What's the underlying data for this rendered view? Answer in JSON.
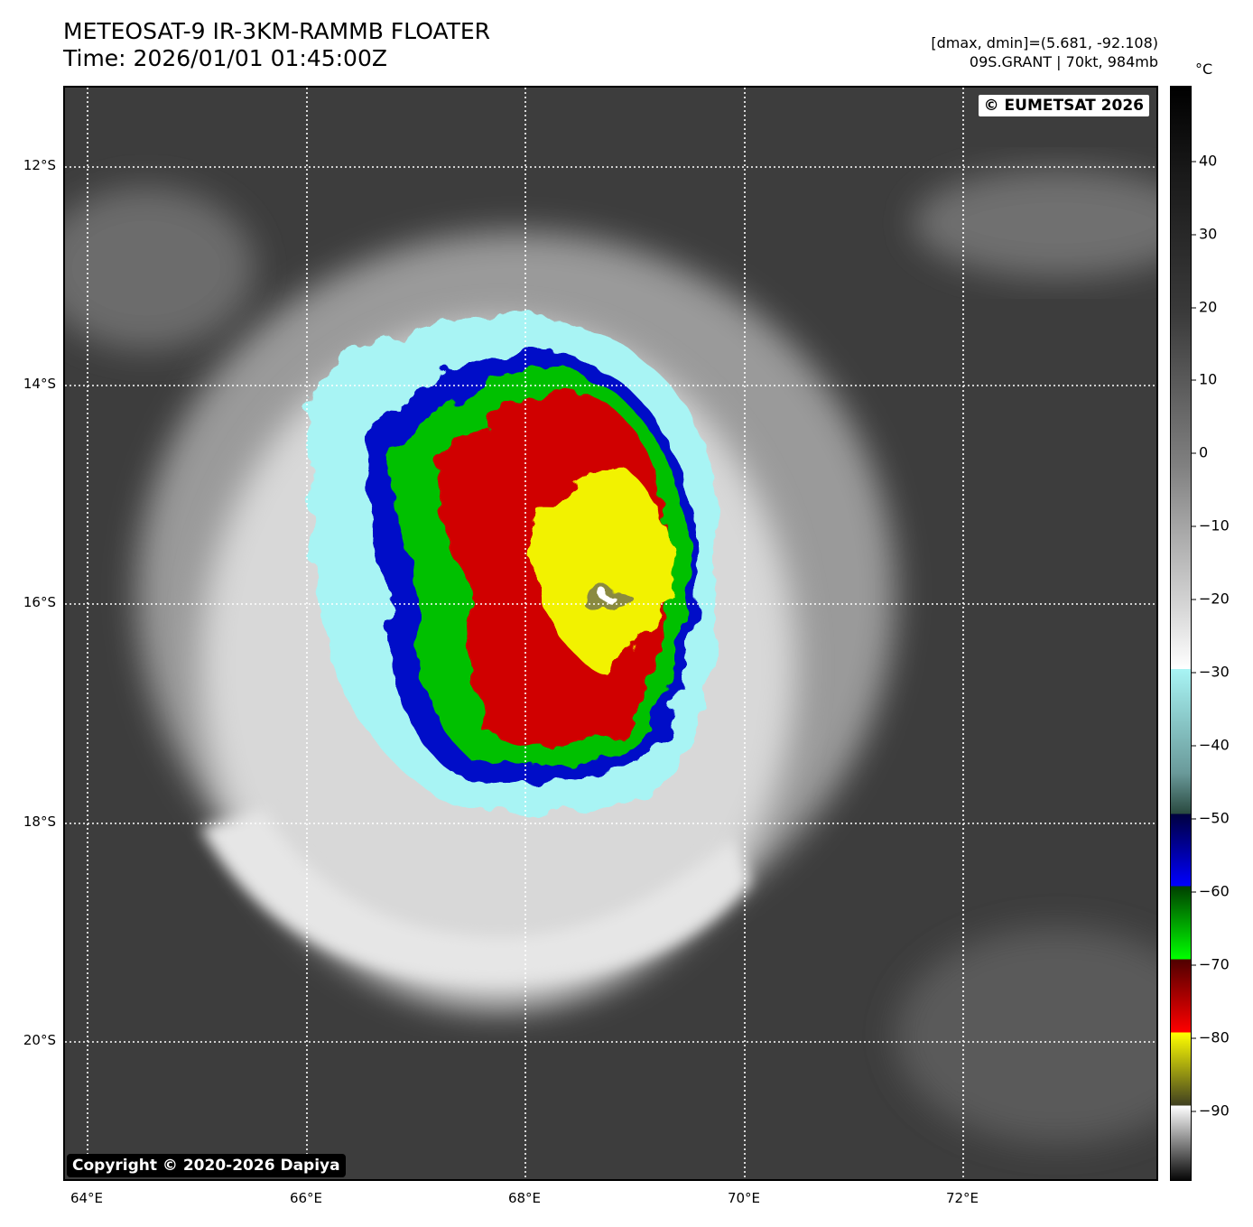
{
  "header": {
    "title_line1": "METEOSAT-9 IR-3KM-RAMMB FLOATER",
    "title_line2": "Time: 2026/01/01 01:45:00Z",
    "range_text": "[dmax, dmin]=(5.681, -92.108)",
    "storm_text": "09S.GRANT | 70kt, 984mb"
  },
  "map": {
    "lat_ticks": [
      "12°S",
      "14°S",
      "16°S",
      "18°S",
      "20°S"
    ],
    "lon_ticks": [
      "64°E",
      "66°E",
      "68°E",
      "70°E",
      "72°E"
    ],
    "eumetsat_label": "© EUMETSAT 2026",
    "copyright_label": "Copyright © 2020-2026 Dapiya"
  },
  "colorbar": {
    "unit": "°C",
    "ticks": [
      "40",
      "30",
      "20",
      "10",
      "0",
      "−10",
      "−20",
      "−30",
      "−40",
      "−50",
      "−60",
      "−70",
      "−80",
      "−90"
    ],
    "colors": {
      "dark": "#3d3d3d",
      "cloud_white": "#f2f2f2",
      "cyan": "#a8f4f4",
      "blue": "#0010c8",
      "green": "#00c000",
      "red": "#d00000",
      "yellow": "#f2f200"
    }
  }
}
